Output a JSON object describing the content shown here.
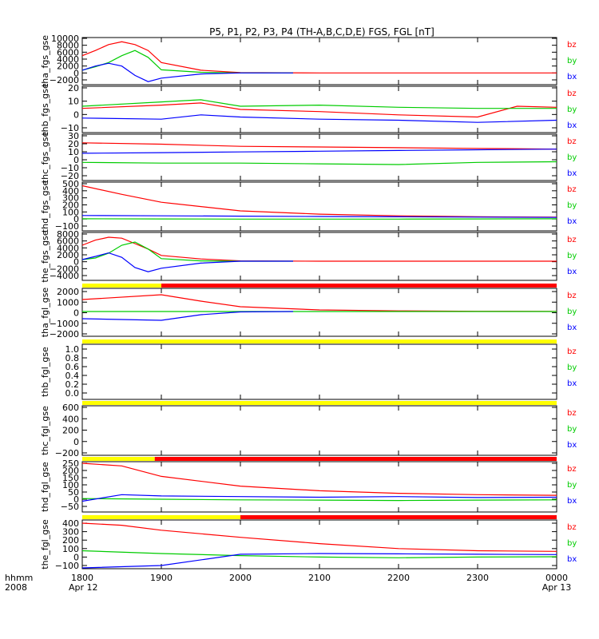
{
  "title": "P5, P1, P2, P3, P4 (TH-A,B,C,D,E) FGS, FGL [nT]",
  "colors": {
    "bz": "#ff0000",
    "by": "#00cc00",
    "bx": "#0000ff",
    "yellow": "#ffff00",
    "red": "#ff0000"
  },
  "x_axis": {
    "ticks": [
      "1800",
      "1900",
      "2000",
      "2100",
      "2200",
      "2300",
      "0000"
    ],
    "date_left": "Apr 12",
    "date_right": "Apr 13",
    "label_line1": "hhmm",
    "label_line2": "2008"
  },
  "chart_data": [
    {
      "type": "line",
      "ylabel": "tha_fgs_gse",
      "yticks": [
        "10000",
        "8000",
        "6000",
        "4000",
        "2000",
        "0",
        "−2000"
      ],
      "ylim": [
        -2000,
        10000
      ],
      "series": [
        {
          "name": "bz",
          "x": [
            1800,
            1810,
            1820,
            1830,
            1840,
            1850,
            1900,
            1930,
            2000,
            2100,
            2200,
            2300,
            2400
          ],
          "values": [
            5000,
            6500,
            8200,
            9000,
            8200,
            6500,
            3000,
            800,
            100,
            0,
            0,
            0,
            0
          ]
        },
        {
          "name": "by",
          "x": [
            1800,
            1810,
            1820,
            1830,
            1840,
            1850,
            1900,
            1930,
            2000,
            2040
          ],
          "values": [
            800,
            1800,
            3000,
            5000,
            6500,
            4500,
            900,
            200,
            0,
            0
          ]
        },
        {
          "name": "bx",
          "x": [
            1800,
            1810,
            1820,
            1830,
            1840,
            1850,
            1900,
            1930,
            2000,
            2040
          ],
          "values": [
            800,
            2000,
            2800,
            2000,
            -700,
            -2500,
            -1500,
            -300,
            0,
            0
          ]
        }
      ]
    },
    {
      "type": "line",
      "ylabel": "thb_fgs_gse",
      "yticks": [
        "20",
        "10",
        "0",
        "−10"
      ],
      "ylim": [
        -15,
        22
      ],
      "series": [
        {
          "name": "bz",
          "x": [
            1800,
            1900,
            1930,
            2000,
            2100,
            2200,
            2300,
            2330,
            2400
          ],
          "values": [
            3,
            6,
            8,
            2,
            0,
            -3,
            -5,
            5,
            4
          ]
        },
        {
          "name": "by",
          "x": [
            1800,
            1900,
            1930,
            2000,
            2100,
            2200,
            2300,
            2400
          ],
          "values": [
            5,
            9,
            11,
            5,
            6,
            4,
            3,
            3
          ]
        },
        {
          "name": "bx",
          "x": [
            1800,
            1900,
            1930,
            2000,
            2100,
            2200,
            2300,
            2400
          ],
          "values": [
            -6,
            -7,
            -3,
            -5,
            -7,
            -8,
            -10,
            -8
          ]
        }
      ]
    },
    {
      "type": "line",
      "ylabel": "thc_fgs_gse",
      "yticks": [
        "30",
        "20",
        "10",
        "0",
        "−10",
        "−20"
      ],
      "ylim": [
        -22,
        35
      ],
      "series": [
        {
          "name": "bz",
          "x": [
            1800,
            1900,
            2000,
            2100,
            2200,
            2300,
            2400
          ],
          "values": [
            25,
            23,
            20,
            19,
            18,
            17,
            16
          ]
        },
        {
          "name": "by",
          "x": [
            1800,
            1900,
            2000,
            2100,
            2200,
            2300,
            2400
          ],
          "values": [
            -3,
            -4,
            -4,
            -5,
            -6,
            -3,
            -2
          ]
        },
        {
          "name": "bx",
          "x": [
            1800,
            1900,
            2000,
            2100,
            2200,
            2300,
            2400
          ],
          "values": [
            10,
            11,
            12,
            13,
            14,
            15,
            16
          ]
        }
      ]
    },
    {
      "type": "line",
      "ylabel": "thd_fgs_gse",
      "yticks": [
        "500",
        "400",
        "300",
        "200",
        "100",
        "0",
        "−100"
      ],
      "ylim": [
        -120,
        520
      ],
      "series": [
        {
          "name": "bz",
          "x": [
            1800,
            1830,
            1900,
            2000,
            2100,
            2200,
            2300,
            2400
          ],
          "values": [
            490,
            360,
            240,
            110,
            60,
            35,
            20,
            15
          ]
        },
        {
          "name": "by",
          "x": [
            1800,
            1900,
            2000,
            2100,
            2200,
            2300,
            2400
          ],
          "values": [
            -10,
            -12,
            -15,
            -15,
            -15,
            -12,
            -10
          ]
        },
        {
          "name": "bx",
          "x": [
            1800,
            1900,
            2000,
            2100,
            2200,
            2300,
            2400
          ],
          "values": [
            40,
            35,
            30,
            25,
            20,
            15,
            10
          ]
        }
      ]
    },
    {
      "type": "line",
      "ylabel": "the_fgs_gse",
      "yticks": [
        "8000",
        "6000",
        "4000",
        "2000",
        "0",
        "−2000",
        "−4000"
      ],
      "ylim": [
        -4500,
        8500
      ],
      "series": [
        {
          "name": "bz",
          "x": [
            1800,
            1810,
            1820,
            1830,
            1840,
            1850,
            1900,
            1930,
            2000,
            2100,
            2200,
            2300,
            2400
          ],
          "values": [
            5000,
            6600,
            7500,
            7200,
            5500,
            3800,
            1800,
            700,
            100,
            0,
            0,
            0,
            0
          ]
        },
        {
          "name": "by",
          "x": [
            1800,
            1810,
            1820,
            1830,
            1840,
            1850,
            1900,
            1930,
            2000,
            2040
          ],
          "values": [
            500,
            1000,
            2500,
            5000,
            6000,
            3800,
            800,
            100,
            0,
            0
          ]
        },
        {
          "name": "bx",
          "x": [
            1800,
            1810,
            1820,
            1830,
            1840,
            1850,
            1900,
            1930,
            2000,
            2040
          ],
          "values": [
            500,
            1500,
            2600,
            1200,
            -2000,
            -3300,
            -2200,
            -600,
            0,
            0
          ]
        }
      ]
    },
    {
      "type": "line",
      "ylabel": "tha_fgl_gse",
      "yticks": [
        "2000",
        "1000",
        "0",
        "−1000",
        "−2000"
      ],
      "ylim": [
        -2800,
        2500
      ],
      "bar": [
        {
          "color": "yellow",
          "from": 1800,
          "to": 1900
        },
        {
          "color": "red",
          "from": 1900,
          "to": 2400
        }
      ],
      "series": [
        {
          "name": "bz",
          "x": [
            1800,
            1900,
            1930,
            2000,
            2100,
            2200,
            2300,
            2400
          ],
          "values": [
            1500,
            2100,
            1300,
            600,
            200,
            80,
            30,
            10
          ]
        },
        {
          "name": "by",
          "x": [
            1800,
            1900,
            1930,
            2000,
            2100,
            2200,
            2300,
            2400
          ],
          "values": [
            0,
            0,
            0,
            0,
            0,
            0,
            0,
            0
          ]
        },
        {
          "name": "bx",
          "x": [
            1800,
            1900,
            1930,
            2000,
            2040
          ],
          "values": [
            -900,
            -1100,
            -400,
            -50,
            0
          ]
        }
      ]
    },
    {
      "type": "line",
      "ylabel": "thb_fgl_gse",
      "yticks": [
        "1.0",
        "0.8",
        "0.6",
        "0.4",
        "0.2",
        "0.0"
      ],
      "ylim": [
        -0.05,
        1.05
      ],
      "bar": [
        {
          "color": "yellow",
          "from": 1800,
          "to": 2400
        }
      ],
      "series": []
    },
    {
      "type": "line",
      "ylabel": "thc_fgl_gse",
      "yticks": [
        "600",
        "400",
        "200",
        "0",
        "−200"
      ],
      "ylim": [
        -300,
        700
      ],
      "bar": [
        {
          "color": "yellow",
          "from": 1800,
          "to": 2400
        }
      ],
      "series": []
    },
    {
      "type": "line",
      "ylabel": "thd_fgl_gse",
      "yticks": [
        "250",
        "200",
        "150",
        "100",
        "50",
        "0",
        "−50"
      ],
      "ylim": [
        -60,
        270
      ],
      "bar": [
        {
          "color": "yellow",
          "from": 1800,
          "to": 1855
        },
        {
          "color": "red",
          "from": 1855,
          "to": 2400
        }
      ],
      "series": [
        {
          "name": "bz",
          "x": [
            1800,
            1830,
            1900,
            2000,
            2100,
            2200,
            2300,
            2400
          ],
          "values": [
            270,
            250,
            170,
            95,
            60,
            40,
            30,
            25
          ]
        },
        {
          "name": "by",
          "x": [
            1800,
            1900,
            2000,
            2100,
            2200,
            2300,
            2400
          ],
          "values": [
            0,
            -5,
            -10,
            -12,
            -15,
            -12,
            -10
          ]
        },
        {
          "name": "bx",
          "x": [
            1800,
            1830,
            1900,
            2000,
            2100,
            2200,
            2300,
            2400
          ],
          "values": [
            -20,
            30,
            20,
            15,
            10,
            15,
            8,
            10
          ]
        }
      ]
    },
    {
      "type": "line",
      "ylabel": "the_fgl_gse",
      "yticks": [
        "400",
        "300",
        "200",
        "100",
        "0",
        "−100"
      ],
      "ylim": [
        -150,
        450
      ],
      "bar": [
        {
          "color": "yellow",
          "from": 1800,
          "to": 2000
        },
        {
          "color": "red",
          "from": 2000,
          "to": 2400
        }
      ],
      "series": [
        {
          "name": "bz",
          "x": [
            1800,
            1830,
            1900,
            2000,
            2100,
            2200,
            2300,
            2400
          ],
          "values": [
            450,
            420,
            350,
            250,
            160,
            90,
            60,
            50
          ]
        },
        {
          "name": "by",
          "x": [
            1800,
            1900,
            2000,
            2100,
            2200,
            2300,
            2400
          ],
          "values": [
            60,
            20,
            -10,
            -30,
            -40,
            -30,
            -25
          ]
        },
        {
          "name": "bx",
          "x": [
            1800,
            1900,
            2000,
            2100,
            2200,
            2300,
            2400
          ],
          "values": [
            -250,
            -150,
            10,
            20,
            15,
            10,
            5
          ]
        }
      ]
    }
  ]
}
